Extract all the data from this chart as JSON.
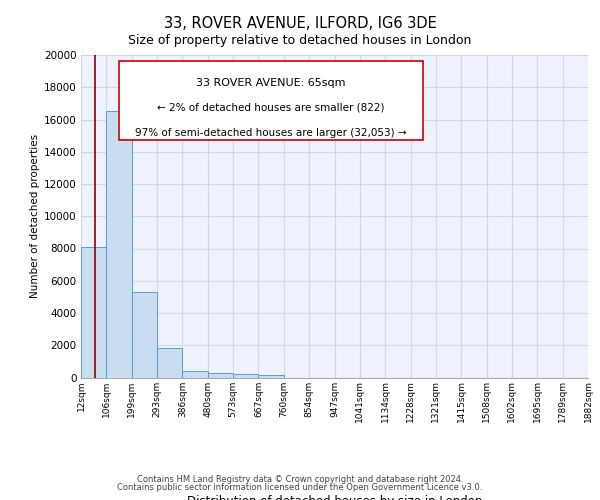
{
  "title_line1": "33, ROVER AVENUE, ILFORD, IG6 3DE",
  "title_line2": "Size of property relative to detached houses in London",
  "xlabel": "Distribution of detached houses by size in London",
  "ylabel": "Number of detached properties",
  "bin_labels": [
    "12sqm",
    "106sqm",
    "199sqm",
    "293sqm",
    "386sqm",
    "480sqm",
    "573sqm",
    "667sqm",
    "760sqm",
    "854sqm",
    "947sqm",
    "1041sqm",
    "1134sqm",
    "1228sqm",
    "1321sqm",
    "1415sqm",
    "1508sqm",
    "1602sqm",
    "1695sqm",
    "1789sqm",
    "1882sqm"
  ],
  "bar_heights": [
    8100,
    16500,
    5300,
    1850,
    400,
    250,
    200,
    150,
    0,
    0,
    0,
    0,
    0,
    0,
    0,
    0,
    0,
    0,
    0,
    0
  ],
  "bar_color": "#c9ddf0",
  "bar_edge_color": "#5b9bd5",
  "background_color": "#edf2fc",
  "grid_color": "#d0d8e8",
  "annotation_line1": "33 ROVER AVENUE: 65sqm",
  "annotation_line2": "← 2% of detached houses are smaller (822)",
  "annotation_line3": "97% of semi-detached houses are larger (32,053) →",
  "property_value": 65,
  "bin_min": 12,
  "bin_max": 106,
  "ylim": [
    0,
    20000
  ],
  "yticks": [
    0,
    2000,
    4000,
    6000,
    8000,
    10000,
    12000,
    14000,
    16000,
    18000,
    20000
  ],
  "vline_color": "#8b0000",
  "box_edge_color": "#cc0000",
  "footer_line1": "Contains HM Land Registry data © Crown copyright and database right 2024.",
  "footer_line2": "Contains public sector information licensed under the Open Government Licence v3.0."
}
